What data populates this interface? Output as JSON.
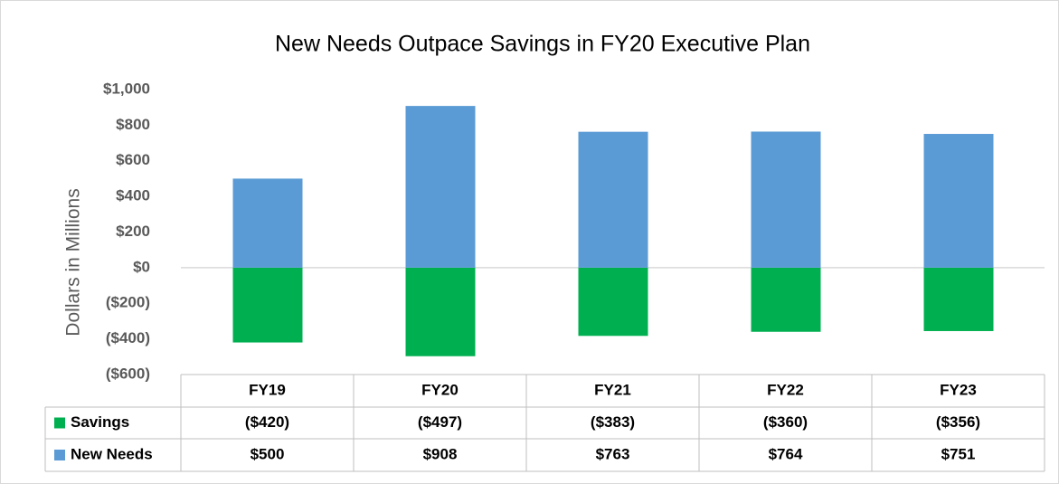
{
  "chart_data": {
    "type": "bar",
    "title": "New Needs Outpace Savings in FY20 Executive Plan",
    "y_label": "Dollars in Millions",
    "categories": [
      "FY19",
      "FY20",
      "FY21",
      "FY22",
      "FY23"
    ],
    "series": [
      {
        "name": "Savings",
        "color": "#00b050",
        "values": [
          -420,
          -497,
          -383,
          -360,
          -356
        ],
        "value_labels": [
          "($420)",
          "($497)",
          "($383)",
          "($360)",
          "($356)"
        ]
      },
      {
        "name": "New Needs",
        "color": "#5b9bd5",
        "values": [
          500,
          908,
          763,
          764,
          751
        ],
        "value_labels": [
          "$500",
          "$908",
          "$763",
          "$764",
          "$751"
        ]
      }
    ],
    "ylim": [
      -600,
      1000
    ],
    "yticks": [
      {
        "value": -600,
        "label": "($600)"
      },
      {
        "value": -400,
        "label": "($400)"
      },
      {
        "value": -200,
        "label": "($200)"
      },
      {
        "value": 0,
        "label": "$0"
      },
      {
        "value": 200,
        "label": "$200"
      },
      {
        "value": 400,
        "label": "$400"
      },
      {
        "value": 600,
        "label": "$600"
      },
      {
        "value": 800,
        "label": "$800"
      },
      {
        "value": 1000,
        "label": "$1,000"
      }
    ],
    "grid": false
  }
}
